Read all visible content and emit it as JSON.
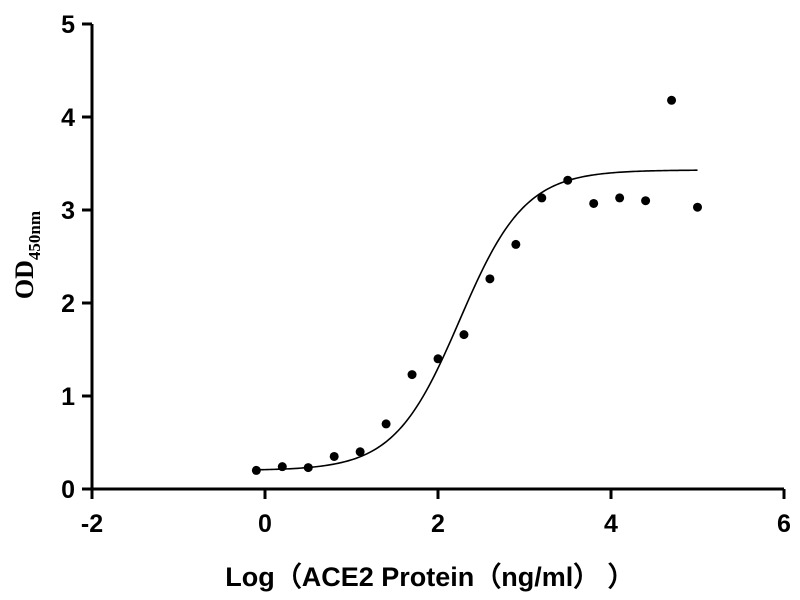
{
  "chart_data": {
    "type": "scatter",
    "xlabel": "Log（ACE2 Protein（ng/ml）  ）",
    "ylabel": "OD",
    "ylabel_subscript": "450nm",
    "xlim": [
      -2,
      6
    ],
    "ylim": [
      0,
      5
    ],
    "x_ticks": [
      -2,
      0,
      2,
      4,
      6
    ],
    "y_ticks": [
      0,
      1,
      2,
      3,
      4,
      5
    ],
    "grid": false,
    "points": [
      {
        "x": -0.1,
        "y": 0.2
      },
      {
        "x": 0.2,
        "y": 0.24
      },
      {
        "x": 0.5,
        "y": 0.23
      },
      {
        "x": 0.8,
        "y": 0.35
      },
      {
        "x": 1.1,
        "y": 0.4
      },
      {
        "x": 1.4,
        "y": 0.7
      },
      {
        "x": 1.7,
        "y": 1.23
      },
      {
        "x": 2.0,
        "y": 1.4
      },
      {
        "x": 2.3,
        "y": 1.66
      },
      {
        "x": 2.6,
        "y": 2.26
      },
      {
        "x": 2.9,
        "y": 2.63
      },
      {
        "x": 3.2,
        "y": 3.13
      },
      {
        "x": 3.5,
        "y": 3.32
      },
      {
        "x": 3.8,
        "y": 3.07
      },
      {
        "x": 4.1,
        "y": 3.13
      },
      {
        "x": 4.4,
        "y": 3.1
      },
      {
        "x": 4.7,
        "y": 4.18
      },
      {
        "x": 5.0,
        "y": 3.03
      }
    ],
    "fit_curve": {
      "model": "four-parameter logistic",
      "bottom": 0.2,
      "top": 3.43,
      "logEC50": 2.25,
      "hill_slope": 1.15,
      "x_range": [
        -0.1,
        5.0
      ]
    }
  }
}
